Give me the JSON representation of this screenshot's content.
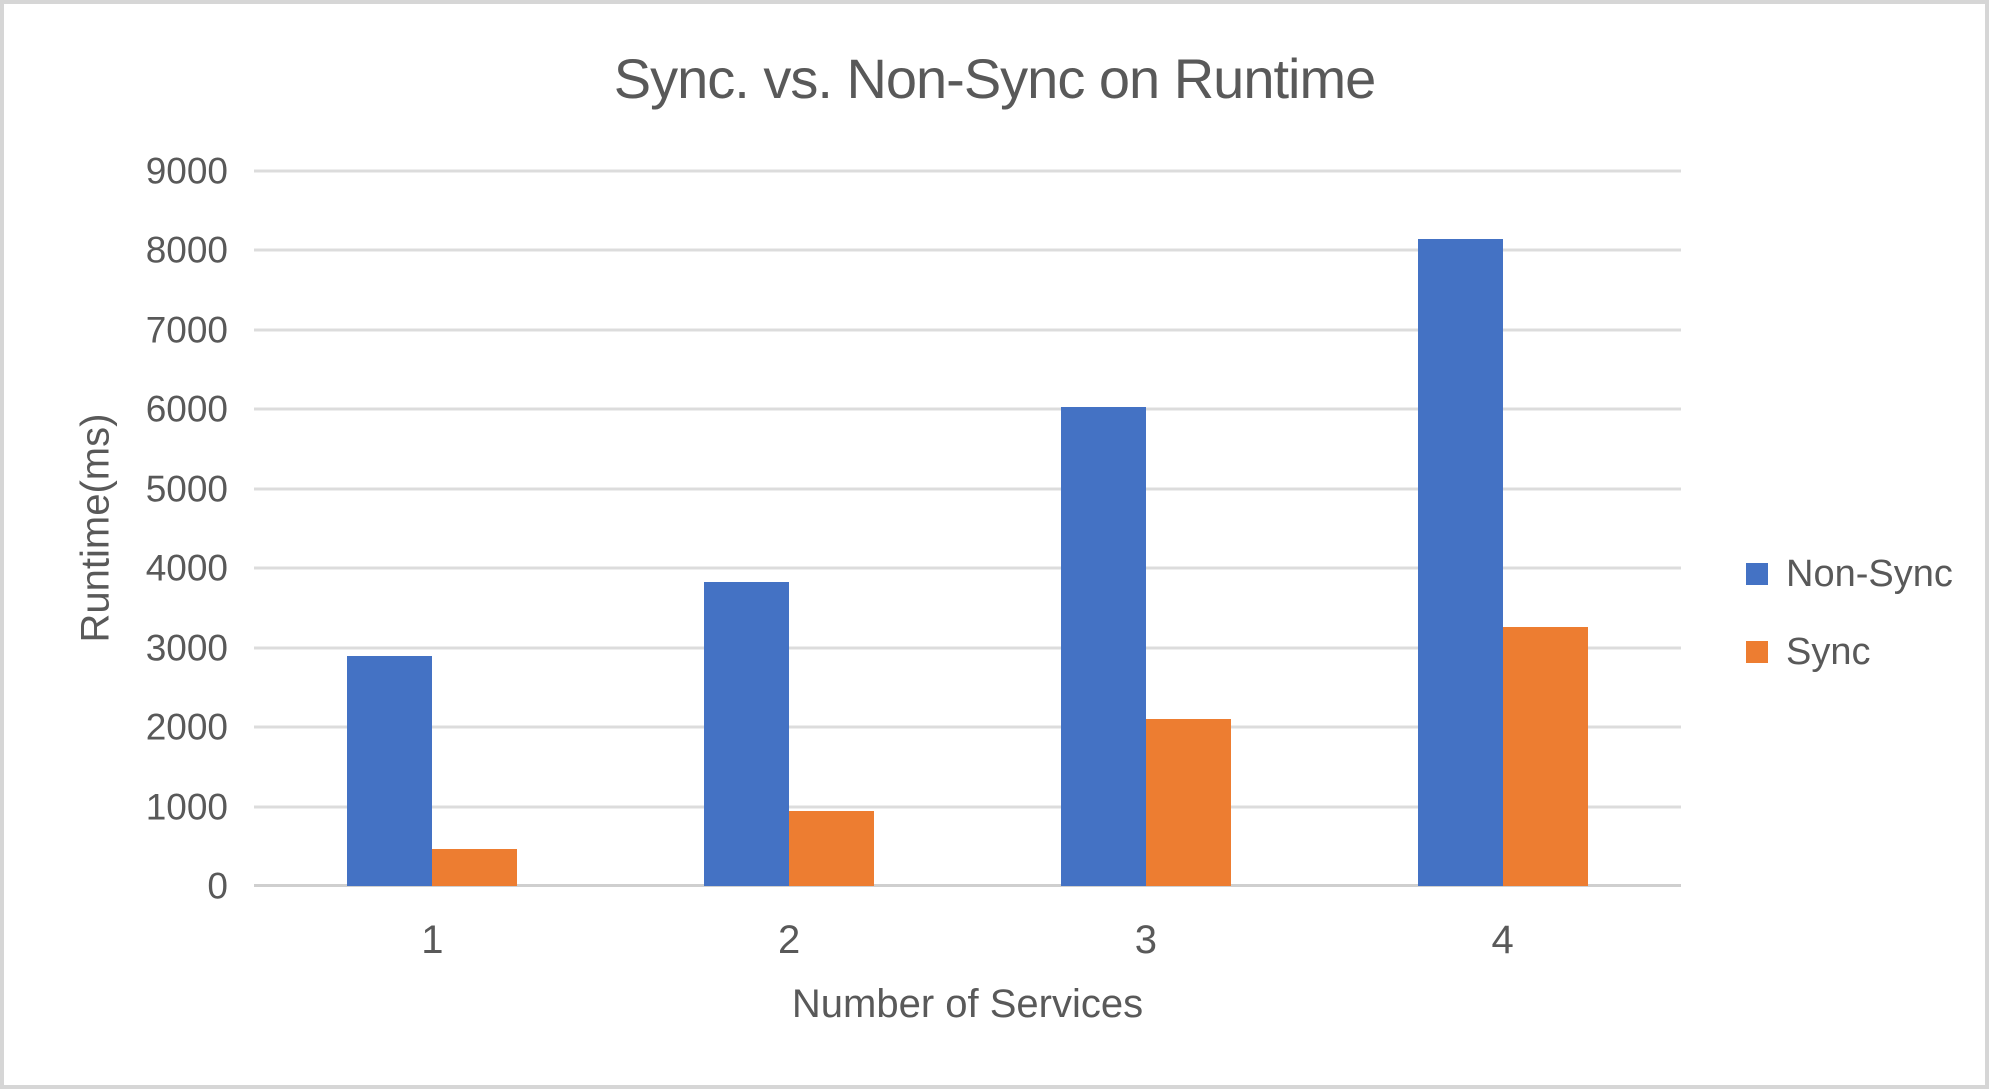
{
  "chart_data": {
    "type": "bar",
    "title": "Sync. vs. Non-Sync on Runtime",
    "xlabel": "Number of Services",
    "ylabel": "Runtime(ms)",
    "categories": [
      "1",
      "2",
      "3",
      "4"
    ],
    "series": [
      {
        "name": "Non-Sync",
        "color": "#4472C4",
        "values": [
          2890,
          3830,
          6030,
          8150
        ]
      },
      {
        "name": "Sync",
        "color": "#ED7D31",
        "values": [
          460,
          940,
          2100,
          3260
        ]
      }
    ],
    "ylim": [
      0,
      9000
    ],
    "ytick_step": 1000,
    "grid": true,
    "legend_position": "right",
    "colors": {
      "text": "#595959",
      "gridline": "#DCDCDC",
      "axis_line": "#CFCFCF",
      "background": "#FFFFFF",
      "border": "#D6D6D6"
    }
  }
}
